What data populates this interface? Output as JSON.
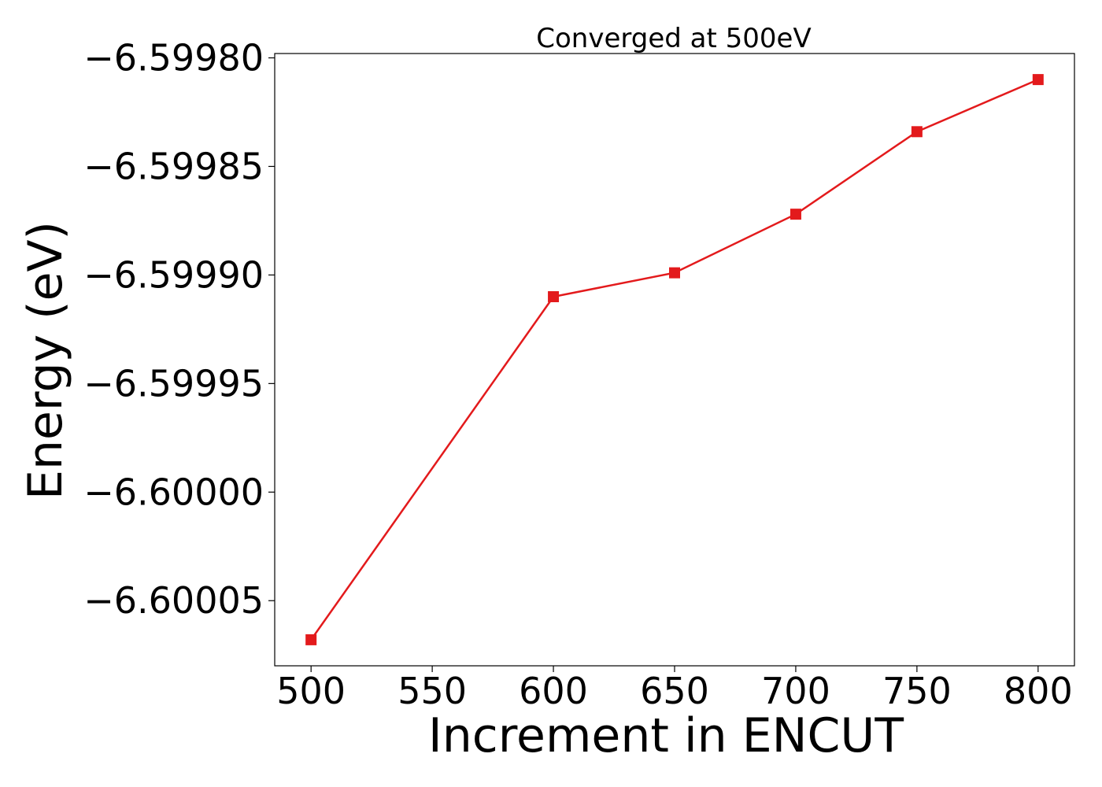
{
  "chart_data": {
    "type": "line",
    "title": "Converged at 500eV",
    "xlabel": "Increment in ENCUT",
    "ylabel": "Energy (eV)",
    "x": [
      500,
      600,
      650,
      700,
      750,
      800
    ],
    "series": [
      {
        "values": [
          -6.600068,
          -6.59991,
          -6.599899,
          -6.599872,
          -6.599834,
          -6.59981
        ],
        "color": "#e31a1c",
        "marker": "square"
      }
    ],
    "xlim": [
      485,
      815
    ],
    "ylim": [
      -6.60008,
      -6.599798
    ],
    "xticks": [
      500,
      550,
      600,
      650,
      700,
      750,
      800
    ],
    "xtick_labels": [
      "500",
      "550",
      "600",
      "650",
      "700",
      "750",
      "800"
    ],
    "yticks": [
      -6.5998,
      -6.59985,
      -6.5999,
      -6.59995,
      -6.6,
      -6.60005
    ],
    "ytick_labels": [
      "−6.59980",
      "−6.59985",
      "−6.59990",
      "−6.59995",
      "−6.60000",
      "−6.60005"
    ],
    "grid": false,
    "legend": "none"
  }
}
